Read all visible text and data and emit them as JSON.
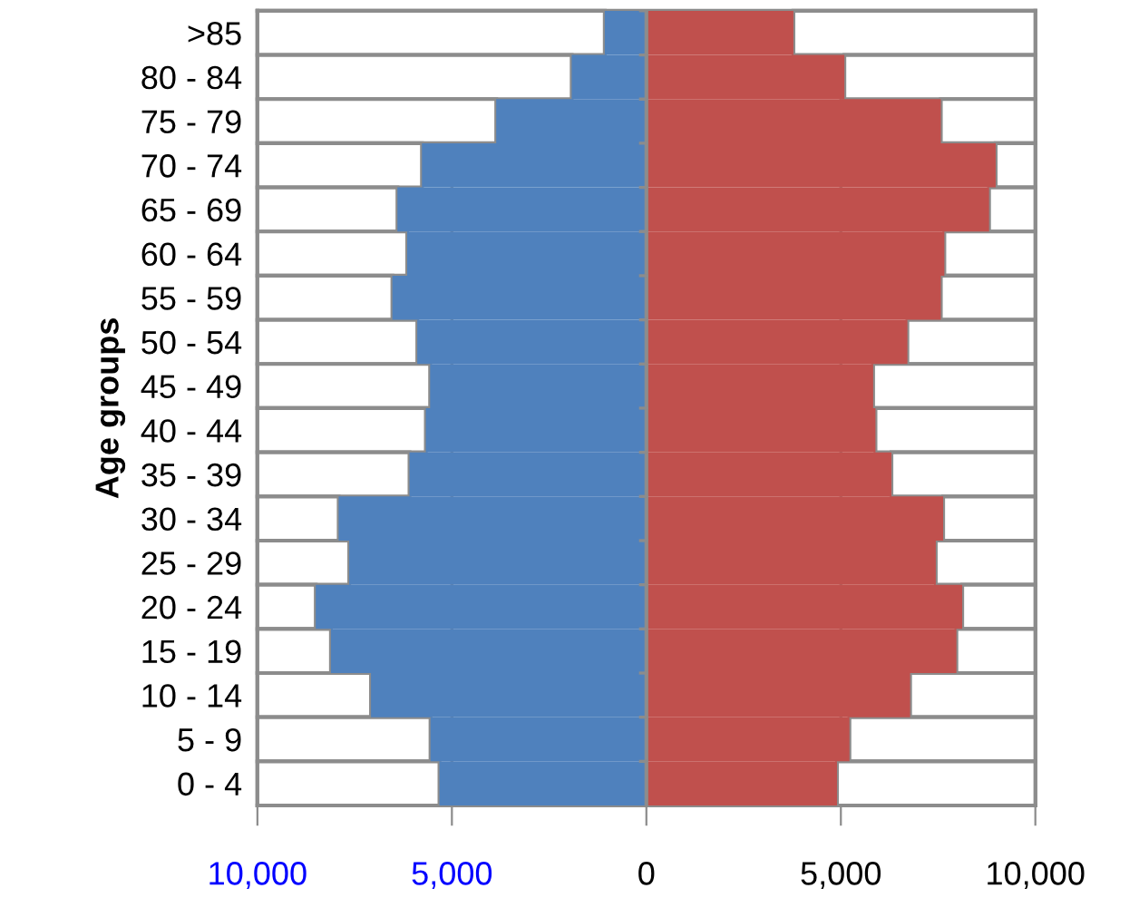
{
  "chart_data": {
    "type": "bar",
    "orientation": "horizontal",
    "stacked": true,
    "ylabel": "Age groups",
    "categories": [
      ">85",
      "80 - 84",
      "75 - 79",
      "70 - 74",
      "65 - 69",
      "60 - 64",
      "55 - 59",
      "50 - 54",
      "45 - 49",
      "40 - 44",
      "35 - 39",
      "30 - 34",
      "25 - 29",
      "20 - 24",
      "15 - 19",
      "10 - 14",
      "5 - 9",
      "0 - 4"
    ],
    "series": [
      {
        "color": "#4f81bd",
        "values": [
          -1070,
          -1920,
          -3860,
          -5770,
          -6400,
          -6150,
          -6530,
          -5890,
          -5560,
          -5670,
          -6090,
          -7910,
          -7640,
          -8500,
          -8110,
          -7080,
          -5550,
          -5320
        ]
      },
      {
        "color": "#ffffff",
        "values": [
          -8930,
          -8080,
          -6140,
          -4230,
          -3600,
          -3850,
          -3470,
          -4110,
          -4440,
          -4330,
          -3910,
          -2090,
          -2360,
          -1500,
          -1890,
          -2920,
          -4450,
          -4680
        ]
      },
      {
        "color": "#c0504d",
        "values": [
          3780,
          5090,
          7570,
          8980,
          8810,
          7660,
          7570,
          6710,
          5830,
          5890,
          6300,
          7630,
          7440,
          8120,
          7970,
          6780,
          5220,
          4900
        ]
      },
      {
        "color": "#ffffff",
        "values": [
          6220,
          4910,
          2430,
          1020,
          1190,
          2340,
          2430,
          3290,
          4170,
          4110,
          3700,
          2370,
          2560,
          1880,
          2030,
          3220,
          4780,
          5100
        ]
      }
    ],
    "xlim": [
      -10000,
      10000
    ],
    "xticks": [
      {
        "value": -10000,
        "label": "10,000"
      },
      {
        "value": -5000,
        "label": "5,000"
      },
      0,
      {
        "value": 5000,
        "label": "5,000"
      },
      {
        "value": 10000,
        "label": "10,000"
      }
    ],
    "grid": "x"
  }
}
